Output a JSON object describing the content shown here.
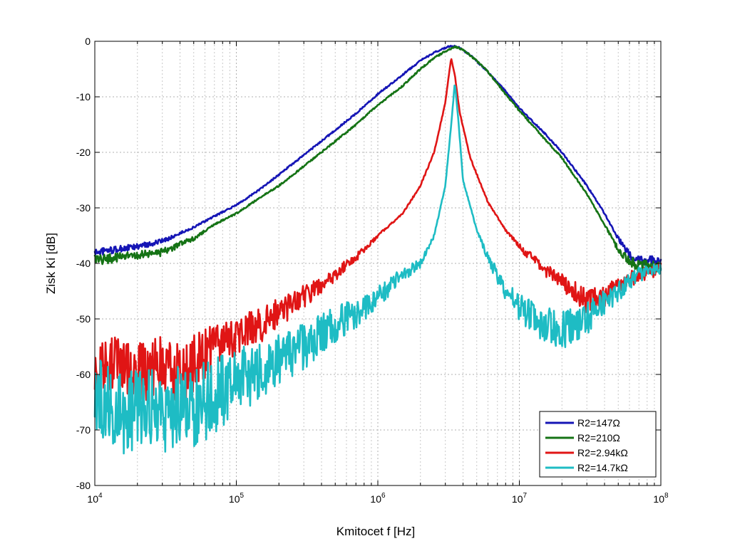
{
  "chart_data": {
    "type": "line",
    "title": "",
    "xlabel": "Kmitocet  f   [Hz]",
    "ylabel": "Zisk  Ki  [dB]",
    "xscale": "log",
    "xlim": [
      10000,
      100000000
    ],
    "ylim": [
      -80,
      0
    ],
    "grid": true,
    "legend_position": "bottom-right",
    "x_ticks": [
      {
        "base": "10",
        "exp": "4",
        "value": 10000
      },
      {
        "base": "10",
        "exp": "5",
        "value": 100000
      },
      {
        "base": "10",
        "exp": "6",
        "value": 1000000
      },
      {
        "base": "10",
        "exp": "7",
        "value": 10000000
      },
      {
        "base": "10",
        "exp": "8",
        "value": 100000000
      }
    ],
    "y_ticks": [
      "0",
      "-10",
      "-20",
      "-30",
      "-40",
      "-50",
      "-60",
      "-70",
      "-80"
    ],
    "series": [
      {
        "name": "R2=147Ω",
        "color": "#1515b5",
        "points": [
          [
            10000,
            -38
          ],
          [
            20000,
            -37
          ],
          [
            30000,
            -36
          ],
          [
            50000,
            -33.5
          ],
          [
            70000,
            -31.5
          ],
          [
            100000,
            -29.5
          ],
          [
            150000,
            -26.5
          ],
          [
            200000,
            -24
          ],
          [
            300000,
            -20.5
          ],
          [
            500000,
            -16
          ],
          [
            700000,
            -13
          ],
          [
            1000000,
            -9.5
          ],
          [
            1500000,
            -6
          ],
          [
            2000000,
            -3.5
          ],
          [
            2500000,
            -2
          ],
          [
            3000000,
            -1.2
          ],
          [
            3300000,
            -0.8
          ],
          [
            3700000,
            -1
          ],
          [
            4500000,
            -2.5
          ],
          [
            6000000,
            -5.5
          ],
          [
            8000000,
            -9
          ],
          [
            10000000,
            -12
          ],
          [
            15000000,
            -16.5
          ],
          [
            20000000,
            -20
          ],
          [
            30000000,
            -26
          ],
          [
            40000000,
            -31
          ],
          [
            50000000,
            -35.5
          ],
          [
            60000000,
            -38.5
          ],
          [
            70000000,
            -39.5
          ],
          [
            85000000,
            -39.5
          ],
          [
            100000000,
            -40
          ]
        ]
      },
      {
        "name": "R2=210Ω",
        "color": "#157315",
        "points": [
          [
            10000,
            -39.5
          ],
          [
            20000,
            -38.5
          ],
          [
            30000,
            -38
          ],
          [
            50000,
            -35.5
          ],
          [
            70000,
            -33
          ],
          [
            100000,
            -31
          ],
          [
            150000,
            -28
          ],
          [
            200000,
            -26
          ],
          [
            300000,
            -22.5
          ],
          [
            500000,
            -18
          ],
          [
            700000,
            -15
          ],
          [
            1000000,
            -11.5
          ],
          [
            1500000,
            -8
          ],
          [
            2000000,
            -5
          ],
          [
            2500000,
            -3
          ],
          [
            3000000,
            -1.8
          ],
          [
            3500000,
            -1
          ],
          [
            4000000,
            -1.5
          ],
          [
            5000000,
            -3.5
          ],
          [
            6000000,
            -5.5
          ],
          [
            8000000,
            -9.5
          ],
          [
            10000000,
            -12.5
          ],
          [
            15000000,
            -17.5
          ],
          [
            20000000,
            -21
          ],
          [
            30000000,
            -27.5
          ],
          [
            40000000,
            -33
          ],
          [
            50000000,
            -37.5
          ],
          [
            60000000,
            -39.5
          ],
          [
            70000000,
            -40.5
          ],
          [
            85000000,
            -40.5
          ],
          [
            100000000,
            -41
          ]
        ]
      },
      {
        "name": "R2=2.94kΩ",
        "color": "#e01515",
        "points": [
          [
            10000,
            -60
          ],
          [
            15000,
            -58
          ],
          [
            20000,
            -60
          ],
          [
            30000,
            -58
          ],
          [
            40000,
            -60
          ],
          [
            50000,
            -58
          ],
          [
            70000,
            -55
          ],
          [
            100000,
            -53
          ],
          [
            150000,
            -51
          ],
          [
            200000,
            -49
          ],
          [
            300000,
            -46
          ],
          [
            500000,
            -42
          ],
          [
            700000,
            -39
          ],
          [
            1000000,
            -35
          ],
          [
            1500000,
            -31
          ],
          [
            2000000,
            -26
          ],
          [
            2500000,
            -20
          ],
          [
            3000000,
            -11
          ],
          [
            3300000,
            -3
          ],
          [
            3500000,
            -6
          ],
          [
            3800000,
            -13
          ],
          [
            4500000,
            -21
          ],
          [
            6000000,
            -29
          ],
          [
            8000000,
            -34
          ],
          [
            10000000,
            -37
          ],
          [
            15000000,
            -41
          ],
          [
            20000000,
            -43.5
          ],
          [
            25000000,
            -45
          ],
          [
            30000000,
            -47
          ],
          [
            40000000,
            -46
          ],
          [
            50000000,
            -44
          ],
          [
            70000000,
            -42
          ],
          [
            100000000,
            -41
          ]
        ]
      },
      {
        "name": "R2=14.7kΩ",
        "color": "#1ebcc4",
        "points": [
          [
            10000,
            -63
          ],
          [
            15000,
            -68
          ],
          [
            20000,
            -66
          ],
          [
            30000,
            -67
          ],
          [
            40000,
            -65
          ],
          [
            50000,
            -66
          ],
          [
            70000,
            -64
          ],
          [
            100000,
            -61
          ],
          [
            150000,
            -60
          ],
          [
            200000,
            -57
          ],
          [
            300000,
            -55
          ],
          [
            500000,
            -51
          ],
          [
            700000,
            -49
          ],
          [
            1000000,
            -46
          ],
          [
            1500000,
            -42
          ],
          [
            2000000,
            -40
          ],
          [
            2500000,
            -35
          ],
          [
            3000000,
            -26
          ],
          [
            3300000,
            -15
          ],
          [
            3500000,
            -7.5
          ],
          [
            3700000,
            -14
          ],
          [
            4000000,
            -25
          ],
          [
            5000000,
            -34
          ],
          [
            6000000,
            -39
          ],
          [
            8000000,
            -45
          ],
          [
            10000000,
            -48
          ],
          [
            15000000,
            -51
          ],
          [
            20000000,
            -52
          ],
          [
            30000000,
            -50
          ],
          [
            40000000,
            -47
          ],
          [
            50000000,
            -45
          ],
          [
            70000000,
            -42
          ],
          [
            100000000,
            -41
          ]
        ]
      }
    ]
  }
}
